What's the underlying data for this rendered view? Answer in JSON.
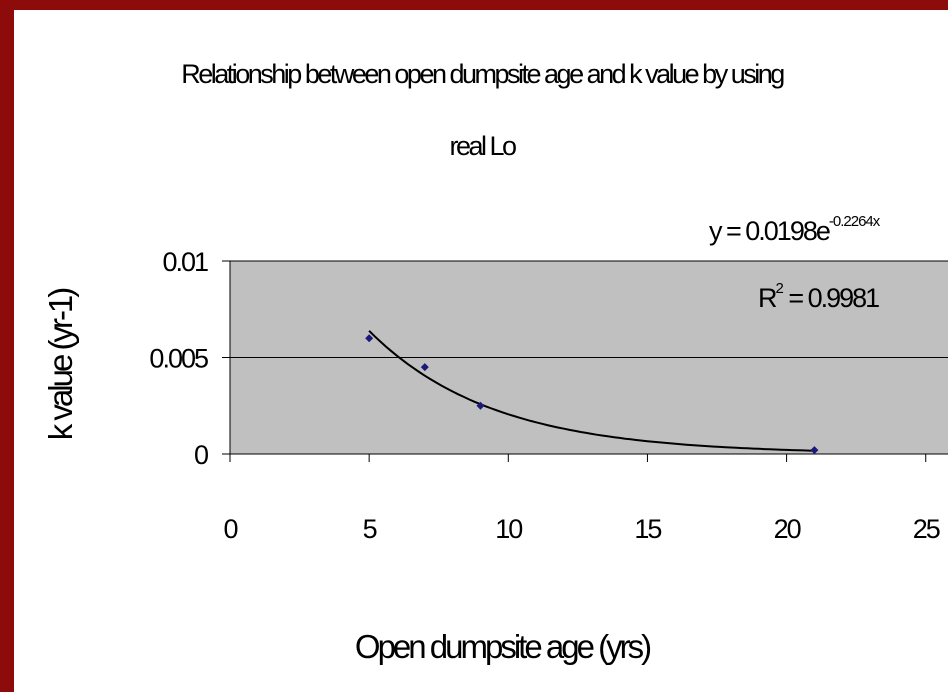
{
  "chart_data": {
    "type": "scatter",
    "title": "Relationship between open dumpsite age and k value by using real Lo",
    "title_lines": [
      "Relationship between open dumpsite age and k value by using",
      "real Lo"
    ],
    "xlabel": "Open dumpsite age (yrs)",
    "ylabel": "k value (yr-1)",
    "xlim": [
      0,
      25
    ],
    "ylim": [
      0,
      0.01
    ],
    "x_ticks": [
      "0",
      "5",
      "10",
      "15",
      "20",
      "25"
    ],
    "y_ticks": [
      "0",
      "0.005",
      "0.01"
    ],
    "x_tick_values": [
      0,
      5,
      10,
      15,
      20,
      25
    ],
    "y_tick_values": [
      0,
      0.005,
      0.01
    ],
    "grid": true,
    "points": [
      {
        "x": 5,
        "y": 0.006
      },
      {
        "x": 7,
        "y": 0.0045
      },
      {
        "x": 9,
        "y": 0.0025
      },
      {
        "x": 21,
        "y": 0.0002
      }
    ],
    "trendline": {
      "type": "exponential",
      "a": 0.0198,
      "b": -0.2264,
      "x_range": [
        5,
        21
      ],
      "equation": {
        "prefix": "y = 0.0198e",
        "exponent": "-0.2264x"
      },
      "r_squared": {
        "base": "R",
        "power": "2",
        "value": " = 0.9981"
      }
    },
    "colors": {
      "background": "#8e0b0b",
      "plot_area": "#c0c0c0",
      "marker": "#1a1a7a",
      "trendline": "#000000"
    }
  }
}
